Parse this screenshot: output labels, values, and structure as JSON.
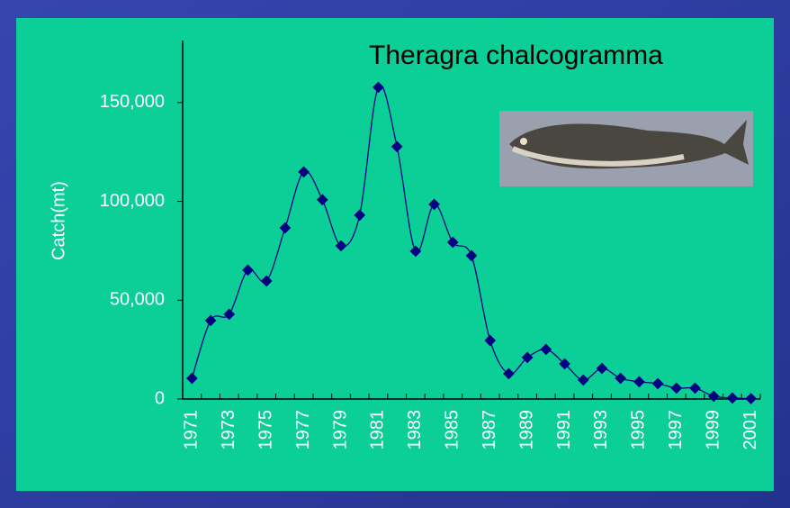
{
  "chart_data": {
    "type": "line",
    "title": "Theragra chalcogramma",
    "y_label": "Catch(mt)",
    "categories": [
      "1971",
      null,
      "1973",
      null,
      "1975",
      null,
      "1977",
      null,
      "1979",
      null,
      "1981",
      null,
      "1983",
      null,
      "1985",
      null,
      "1987",
      null,
      "1989",
      null,
      "1991",
      null,
      "1993",
      null,
      "1995",
      null,
      "1997",
      null,
      "1999",
      null,
      "2001"
    ],
    "series": [
      {
        "color": "#000080",
        "values": [
          10500,
          39700,
          42900,
          65200,
          59700,
          86600,
          114900,
          100800,
          77500,
          93000,
          157700,
          127700,
          74800,
          98500,
          79300,
          72500,
          29600,
          12800,
          21000,
          25100,
          17800,
          9600,
          15500,
          10500,
          8700,
          7800,
          5500,
          5500,
          1400,
          500,
          200
        ]
      }
    ],
    "ylim": [
      0,
      180000
    ],
    "yticks": [
      0,
      {
        "value": 50000,
        "label": "50,000"
      },
      {
        "value": 100000,
        "label": "100,000"
      },
      {
        "value": 150000,
        "label": "150,000"
      }
    ]
  }
}
